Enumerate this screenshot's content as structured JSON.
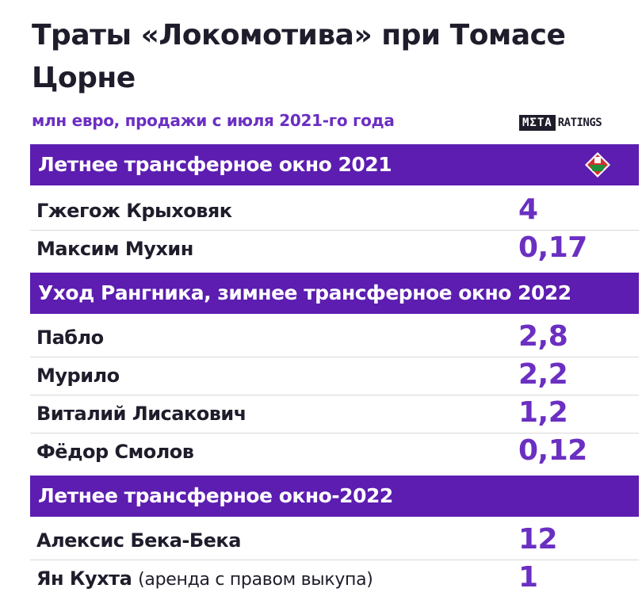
{
  "title": "Траты «Локомотива» при Томасе Цорне",
  "subtitle": "млн евро, продажи с июля 2021-го года",
  "brand": {
    "meta": "MΣTA",
    "ratings": "RATINGS"
  },
  "colors": {
    "band": "#5c1db0",
    "accent": "#6b2fc2",
    "text": "#1f1d2b"
  },
  "chart_data": {
    "type": "table",
    "unit": "млн евро",
    "sections": [
      {
        "header": "Летнее трансферное окно 2021",
        "rows": [
          {
            "name": "Гжегож Крыховяк",
            "note": "",
            "value": "4"
          },
          {
            "name": "Максим Мухин",
            "note": "",
            "value": "0,17"
          }
        ]
      },
      {
        "header": "Уход Рангника, зимнее трансферное окно 2022",
        "rows": [
          {
            "name": "Пабло",
            "note": "",
            "value": "2,8"
          },
          {
            "name": "Мурило",
            "note": "",
            "value": "2,2"
          },
          {
            "name": "Виталий Лисакович",
            "note": "",
            "value": "1,2"
          },
          {
            "name": "Фёдор Смолов",
            "note": "",
            "value": "0,12"
          }
        ]
      },
      {
        "header": "Летнее трансферное окно-2022",
        "rows": [
          {
            "name": "Алексис Бека-Бека",
            "note": "",
            "value": "12"
          },
          {
            "name": "Ян Кухта",
            "note": "(аренда с правом выкупа)",
            "value": "1"
          }
        ]
      }
    ]
  }
}
